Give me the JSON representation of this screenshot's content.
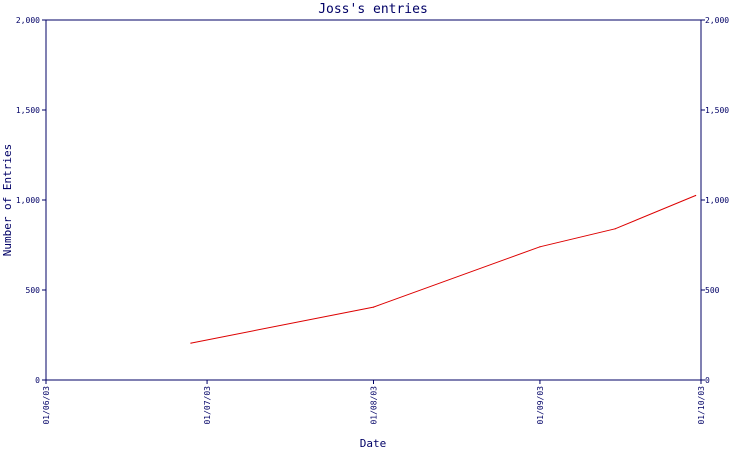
{
  "chart_data": {
    "type": "line",
    "title": "Joss's entries",
    "xlabel": "Date",
    "ylabel": "Number of Entries",
    "x_ticks": [
      "01/06/03",
      "01/07/03",
      "01/08/03",
      "01/09/03",
      "01/10/03"
    ],
    "x_range": [
      "2003-06-01",
      "2003-10-01"
    ],
    "ylim": [
      0,
      2000
    ],
    "y_ticks": [
      0,
      500,
      1000,
      1500,
      2000
    ],
    "y_tick_labels": [
      "0",
      "500",
      "1,000",
      "1,500",
      "2,000"
    ],
    "right_axis": true,
    "grid": false,
    "legend": "none",
    "series": [
      {
        "color": "#dd0000",
        "points": [
          {
            "x": "2003-06-28",
            "y": 205
          },
          {
            "x": "2003-08-01",
            "y": 405
          },
          {
            "x": "2003-09-01",
            "y": 740
          },
          {
            "x": "2003-09-15",
            "y": 840
          },
          {
            "x": "2003-09-30",
            "y": 1025
          }
        ]
      }
    ],
    "colors": {
      "axis": "#000066",
      "text": "#000066"
    }
  }
}
